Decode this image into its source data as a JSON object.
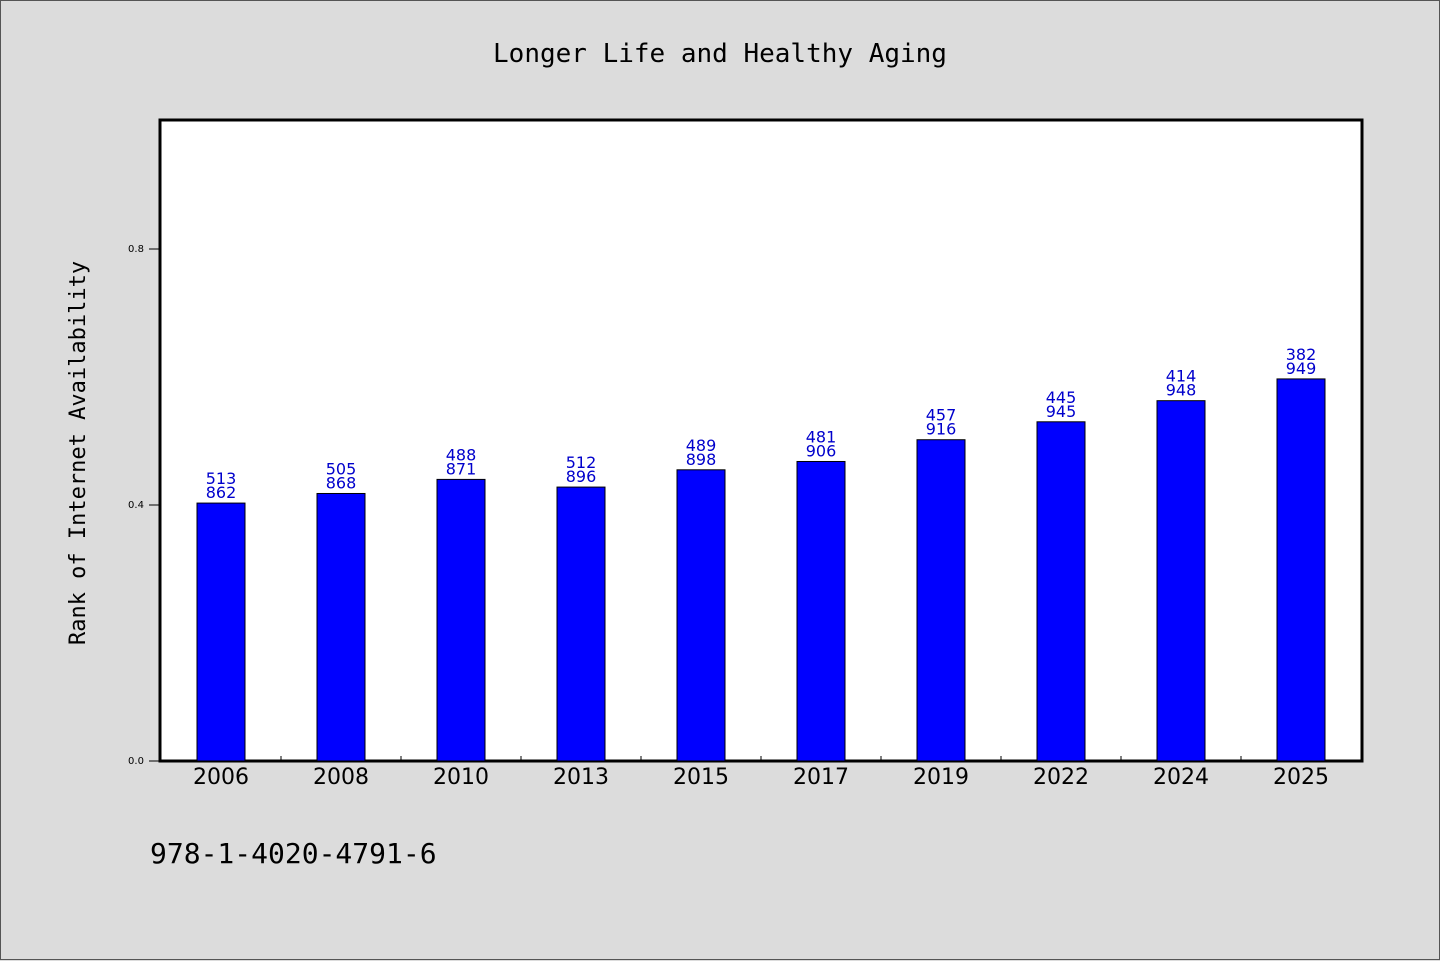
{
  "footer_text": "978-1-4020-4791-6",
  "colors": {
    "background": "#dcdcdc",
    "plot_background": "#ffffff",
    "bar": "#0000ff",
    "data_label": "#0000cc"
  },
  "chart_data": {
    "type": "bar",
    "title": "Longer Life and Healthy Aging",
    "xlabel": "",
    "ylabel": "Rank of Internet Availability",
    "ylim": [
      0,
      1.0
    ],
    "yticks": [
      {
        "value": 0.0,
        "label": "0.0"
      },
      {
        "value": 0.4,
        "label": "0.4"
      },
      {
        "value": 0.8,
        "label": "0.8"
      }
    ],
    "categories": [
      "2006",
      "2008",
      "2010",
      "2013",
      "2015",
      "2017",
      "2019",
      "2022",
      "2024",
      "2025"
    ],
    "values": [
      0.403,
      0.418,
      0.44,
      0.428,
      0.455,
      0.468,
      0.502,
      0.53,
      0.563,
      0.597
    ],
    "data_labels": [
      [
        "513",
        "862"
      ],
      [
        "505",
        "868"
      ],
      [
        "488",
        "871"
      ],
      [
        "512",
        "896"
      ],
      [
        "489",
        "898"
      ],
      [
        "481",
        "906"
      ],
      [
        "457",
        "916"
      ],
      [
        "445",
        "945"
      ],
      [
        "414",
        "948"
      ],
      [
        "382",
        "949"
      ]
    ],
    "grid": false,
    "legend": "none"
  }
}
